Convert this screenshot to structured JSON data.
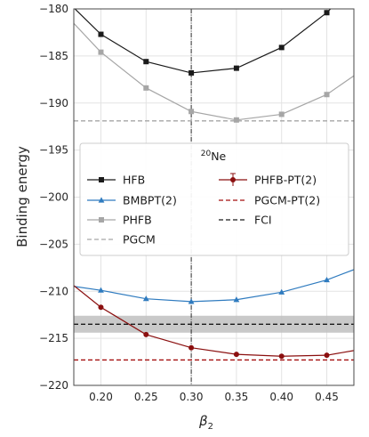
{
  "chart_data": {
    "type": "line",
    "xlabel": "β",
    "xlabel_sub": "2",
    "ylabel": "Binding energy",
    "xlim": [
      0.17,
      0.48
    ],
    "ylim": [
      -220,
      -180
    ],
    "xticks": [
      0.2,
      0.25,
      0.3,
      0.35,
      0.4,
      0.45
    ],
    "xtick_labels": [
      "0.20",
      "0.25",
      "0.30",
      "0.35",
      "0.40",
      "0.45"
    ],
    "yticks": [
      -220,
      -215,
      -210,
      -205,
      -200,
      -195,
      -190,
      -185,
      -180
    ],
    "ytick_labels": [
      "−220",
      "−215",
      "−210",
      "−205",
      "−200",
      "−195",
      "−190",
      "−185",
      "−180"
    ],
    "grid": true,
    "vertical_marker_x": 0.3,
    "legend_placement": "center",
    "legend_title_mass": "20",
    "legend_title_element": "Ne",
    "series": [
      {
        "name": "HFB",
        "style": "solid",
        "marker": "square",
        "color": "#1a1a1a",
        "x": [
          0.15,
          0.2,
          0.25,
          0.3,
          0.35,
          0.4,
          0.45,
          0.48
        ],
        "y": [
          -178.0,
          -182.7,
          -185.6,
          -186.8,
          -186.3,
          -184.1,
          -180.4,
          -177.5
        ]
      },
      {
        "name": "BMBPT(2)",
        "style": "solid",
        "marker": "triangle",
        "color": "#2f7bbf",
        "x": [
          0.15,
          0.2,
          0.25,
          0.3,
          0.35,
          0.4,
          0.45,
          0.48
        ],
        "y": [
          -209.2,
          -209.9,
          -210.8,
          -211.1,
          -210.9,
          -210.1,
          -208.8,
          -207.7
        ]
      },
      {
        "name": "PHFB",
        "style": "solid",
        "marker": "square",
        "color": "#a6a6a6",
        "x": [
          0.15,
          0.2,
          0.25,
          0.3,
          0.35,
          0.4,
          0.45,
          0.48
        ],
        "y": [
          -179.5,
          -184.6,
          -188.4,
          -190.9,
          -191.8,
          -191.2,
          -189.1,
          -187.1
        ]
      },
      {
        "name": "PHFB-PT(2)",
        "style": "solid",
        "marker": "circle",
        "color": "#8b0f0f",
        "x": [
          0.17,
          0.2,
          0.25,
          0.3,
          0.35,
          0.4,
          0.45,
          0.48
        ],
        "y": [
          -209.4,
          -211.7,
          -214.6,
          -216.0,
          -216.7,
          -216.9,
          -216.8,
          -216.3
        ]
      },
      {
        "name": "PGCM",
        "style": "dashed",
        "marker": "none",
        "color": "#a6a6a6",
        "x": [
          0.17,
          0.48
        ],
        "y": [
          -191.9,
          -191.9
        ]
      },
      {
        "name": "PGCM-PT(2)",
        "style": "dashed",
        "marker": "none",
        "color": "#a50f0f",
        "x": [
          0.17,
          0.48
        ],
        "y": [
          -217.3,
          -217.3
        ]
      },
      {
        "name": "FCI",
        "style": "dashed",
        "marker": "none",
        "color": "#1a1a1a",
        "x": [
          0.17,
          0.48
        ],
        "y": [
          -213.5,
          -213.5
        ]
      }
    ],
    "fci_band": {
      "color": "#bfbfbf",
      "y_range": [
        -214.4,
        -212.6
      ]
    }
  }
}
